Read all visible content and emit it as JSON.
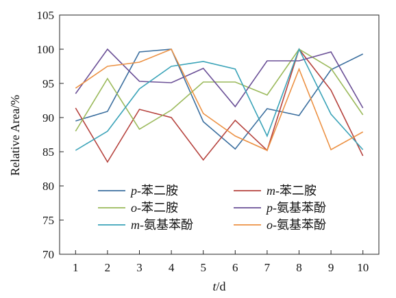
{
  "chart_data": {
    "type": "line",
    "x": [
      1,
      2,
      3,
      4,
      5,
      6,
      7,
      8,
      9,
      10
    ],
    "xlabel_italic": "t",
    "xlabel_rest": "/d",
    "ylabel": "Relative Area/%",
    "ylim": [
      70,
      105
    ],
    "yticks": [
      70,
      75,
      80,
      85,
      90,
      95,
      100,
      105
    ],
    "grid": false,
    "legend_position": "bottom-left",
    "series": [
      {
        "prefix": "p",
        "suffix": "-苯二胺",
        "color": "#3a6e9e",
        "values": [
          89.5,
          90.9,
          99.6,
          100.0,
          89.4,
          85.4,
          91.3,
          90.3,
          97.0,
          99.3
        ]
      },
      {
        "prefix": "m",
        "suffix": "-苯二胺",
        "color": "#b5413c",
        "values": [
          91.4,
          83.5,
          91.2,
          90.0,
          83.8,
          89.6,
          85.2,
          100.0,
          94.0,
          84.4
        ]
      },
      {
        "prefix": "o",
        "suffix": "-苯二胺",
        "color": "#9ab95a",
        "values": [
          88.0,
          95.7,
          88.3,
          91.1,
          95.2,
          95.2,
          93.3,
          100.0,
          97.2,
          90.4
        ]
      },
      {
        "prefix": "p",
        "suffix": "-氨基苯酚",
        "color": "#6a4f96",
        "values": [
          93.5,
          100.0,
          95.3,
          95.1,
          97.2,
          91.6,
          98.3,
          98.3,
          99.6,
          91.4
        ]
      },
      {
        "prefix": "m",
        "suffix": "-氨基苯酚",
        "color": "#3aa3b8",
        "values": [
          85.2,
          88.0,
          94.2,
          97.5,
          98.2,
          97.1,
          87.3,
          100.0,
          90.5,
          85.3
        ]
      },
      {
        "prefix": "o",
        "suffix": "-氨基苯酚",
        "color": "#ec9143",
        "values": [
          94.3,
          97.5,
          98.1,
          100.0,
          90.6,
          87.3,
          85.2,
          97.1,
          85.3,
          87.9
        ]
      }
    ]
  }
}
